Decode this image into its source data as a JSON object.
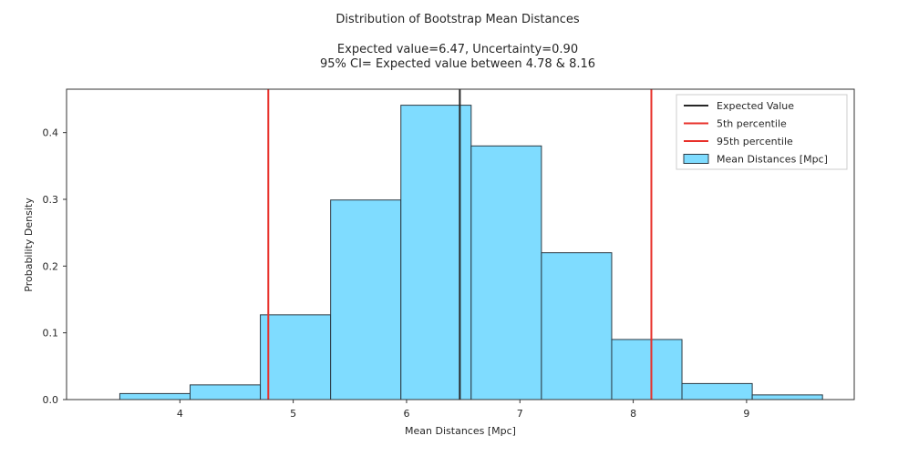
{
  "chart_data": {
    "type": "bar",
    "title": "Distribution of Bootstrap Mean Distances",
    "subtitle_line1": "Expected value=6.47, Uncertainty=0.90",
    "subtitle_line2": "95% CI= Expected value between 4.78 & 8.16",
    "xlabel": "Mean Distances [Mpc]",
    "ylabel": "Probability Density",
    "xlim": [
      3.0,
      9.95
    ],
    "ylim": [
      0.0,
      0.465
    ],
    "xticks": [
      4,
      5,
      6,
      7,
      8,
      9
    ],
    "xtick_labels": [
      "4",
      "5",
      "6",
      "7",
      "8",
      "9"
    ],
    "yticks": [
      0.0,
      0.1,
      0.2,
      0.3,
      0.4
    ],
    "ytick_labels": [
      "0.0",
      "0.1",
      "0.2",
      "0.3",
      "0.4"
    ],
    "grid": false,
    "legend_position": "top-right",
    "bins": [
      {
        "start": 3.47,
        "end": 4.09,
        "density": 0.009
      },
      {
        "start": 4.09,
        "end": 4.71,
        "density": 0.022
      },
      {
        "start": 4.71,
        "end": 5.33,
        "density": 0.127
      },
      {
        "start": 5.33,
        "end": 5.95,
        "density": 0.299
      },
      {
        "start": 5.95,
        "end": 6.57,
        "density": 0.441
      },
      {
        "start": 6.57,
        "end": 7.19,
        "density": 0.38
      },
      {
        "start": 7.19,
        "end": 7.81,
        "density": 0.22
      },
      {
        "start": 7.81,
        "end": 8.43,
        "density": 0.09
      },
      {
        "start": 8.43,
        "end": 9.05,
        "density": 0.024
      },
      {
        "start": 9.05,
        "end": 9.67,
        "density": 0.007
      }
    ],
    "vlines": [
      {
        "name": "Expected Value",
        "x": 6.47,
        "color": "#262626"
      },
      {
        "name": "5th percentile",
        "x": 4.78,
        "color": "#e8302a"
      },
      {
        "name": "95th percentile",
        "x": 8.16,
        "color": "#e8302a"
      }
    ],
    "hist_color": "#7fdcff",
    "hist_edge_color": "#2b3a44",
    "legend": [
      {
        "label": "Expected Value",
        "kind": "line",
        "color": "#262626"
      },
      {
        "label": " 5th percentile",
        "kind": "line",
        "color": "#e8302a"
      },
      {
        "label": "95th percentile",
        "kind": "line",
        "color": "#e8302a"
      },
      {
        "label": "Mean Distances [Mpc]",
        "kind": "patch",
        "color": "#7fdcff"
      }
    ]
  }
}
